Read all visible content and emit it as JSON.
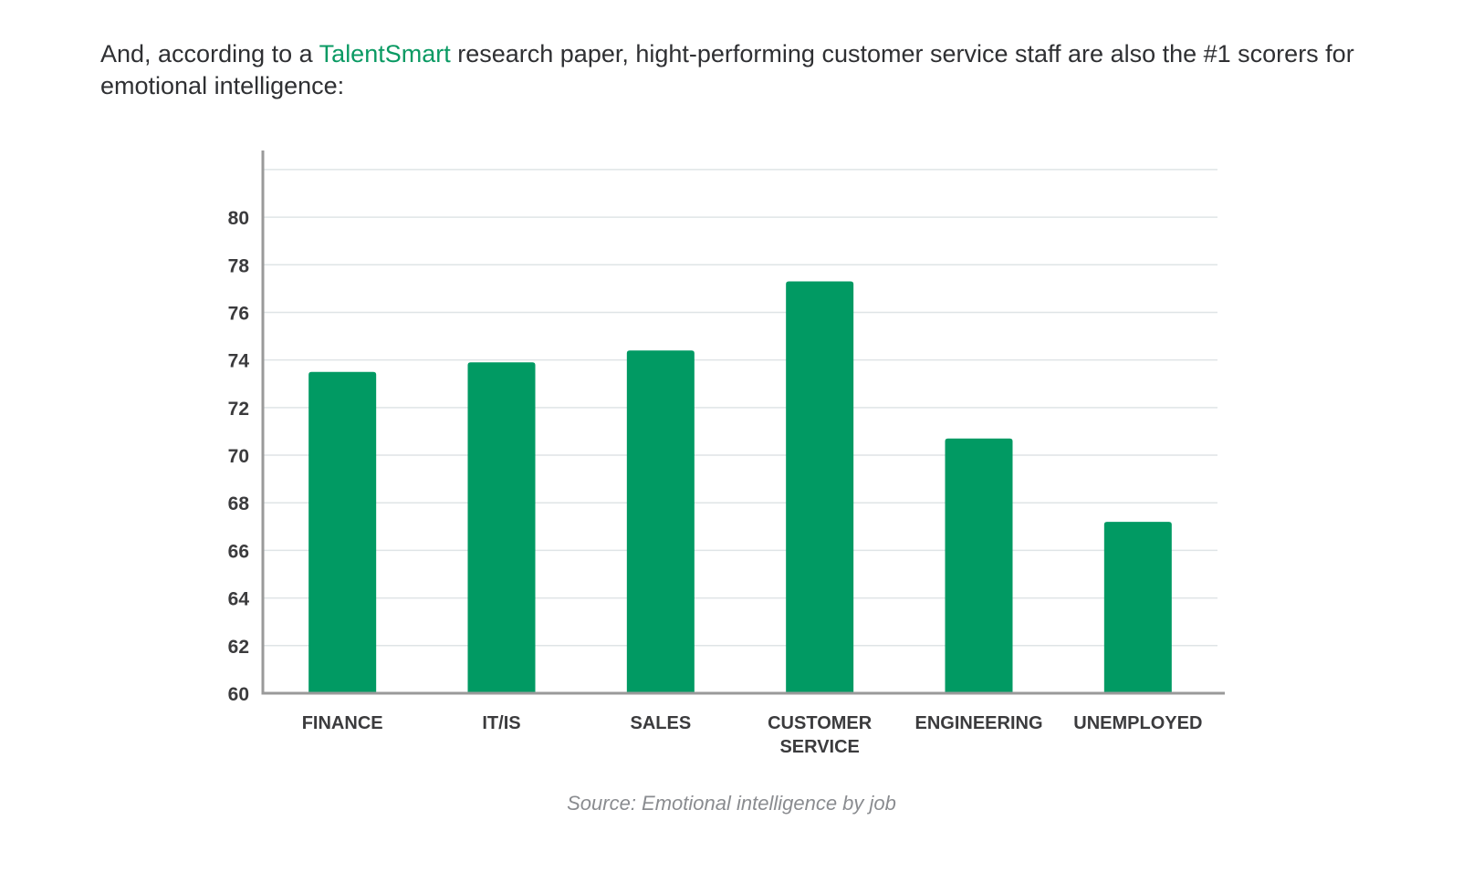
{
  "intro": {
    "before_link": "And, according to a ",
    "link_text": "TalentSmart",
    "after_link": " research paper, hight-performing customer service staff are also the #1 scorers for emotional intelligence:"
  },
  "chart_data": {
    "type": "bar",
    "title": "",
    "xlabel": "",
    "ylabel": "",
    "categories": [
      [
        "FINANCE"
      ],
      [
        "IT/IS"
      ],
      [
        "SALES"
      ],
      [
        "CUSTOMER",
        "SERVICE"
      ],
      [
        "ENGINEERING"
      ],
      [
        "UNEMPLOYED"
      ]
    ],
    "values": [
      73.5,
      73.9,
      74.4,
      77.3,
      70.7,
      67.2
    ],
    "y_ticks": [
      "60",
      "62",
      "64",
      "66",
      "68",
      "70",
      "72",
      "74",
      "76",
      "78",
      "80"
    ],
    "ylim": [
      60,
      82.8
    ],
    "grid": true,
    "bar_color": "#019a63",
    "grid_color": "#dfe4e6",
    "axis_color": "#9a9a9a"
  },
  "source": "Source: Emotional intelligence by job"
}
